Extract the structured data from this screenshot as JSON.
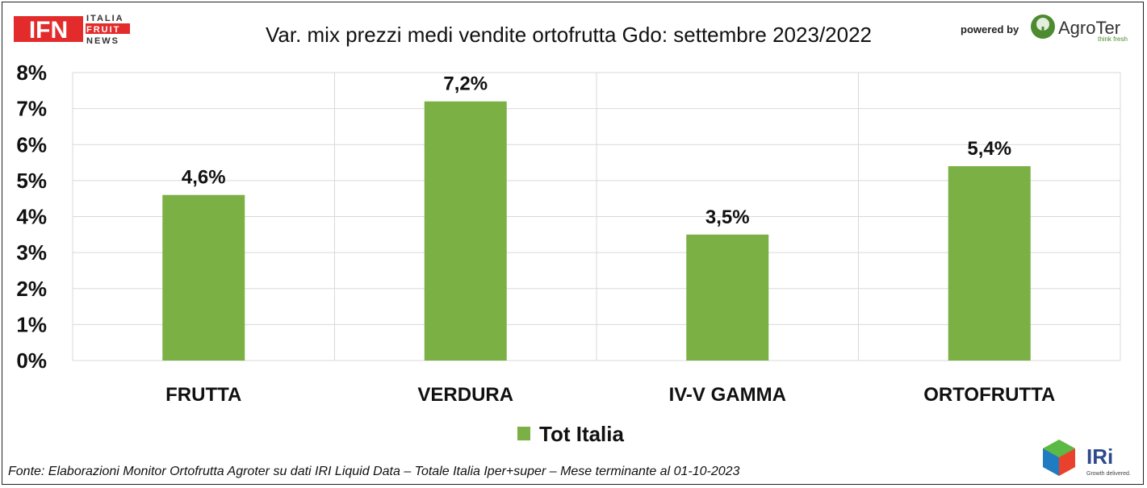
{
  "header": {
    "title": "Var. mix prezzi medi vendite ortofrutta Gdo: settembre 2023/2022",
    "powered_by": "powered by"
  },
  "logos": {
    "ifn": {
      "mark": "IFN",
      "lines": [
        "ITALIA",
        "FRUIT",
        "NEWS"
      ]
    },
    "agroter": {
      "name": "AgroTer",
      "tagline": "think fresh"
    },
    "iri": {
      "name": "IRi",
      "tagline": "Growth delivered."
    }
  },
  "footer": {
    "source": "Fonte: Elaborazioni Monitor Ortofrutta Agroter su dati IRI Liquid Data – Totale Italia Iper+super – Mese terminante al 01-10-2023"
  },
  "colors": {
    "bar": "#7bb045",
    "grid": "#d9d9d9",
    "ifn_red": "#e32b2b",
    "agroter_green": "#4c8b2f"
  },
  "chart_data": {
    "type": "bar",
    "title": "Var. mix prezzi medi vendite ortofrutta Gdo: settembre 2023/2022",
    "categories": [
      "FRUTTA",
      "VERDURA",
      "IV-V GAMMA",
      "ORTOFRUTTA"
    ],
    "series": [
      {
        "name": "Tot Italia",
        "values": [
          4.6,
          7.2,
          3.5,
          5.4
        ]
      }
    ],
    "data_labels": [
      "4,6%",
      "7,2%",
      "3,5%",
      "5,4%"
    ],
    "y_ticks": [
      "0%",
      "1%",
      "2%",
      "3%",
      "4%",
      "5%",
      "6%",
      "7%",
      "8%"
    ],
    "ylim": [
      0,
      8
    ],
    "xlabel": "",
    "ylabel": "",
    "grid": true,
    "legend_position": "bottom"
  }
}
